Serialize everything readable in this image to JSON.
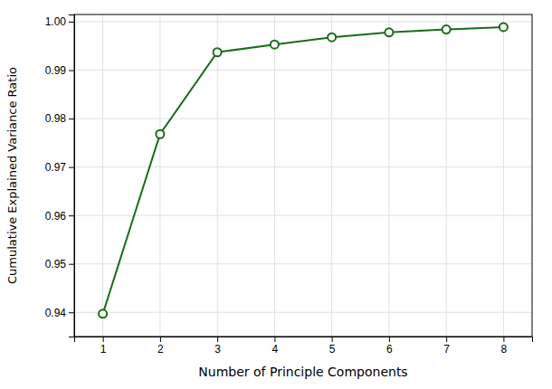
{
  "chart_data": {
    "type": "line",
    "x": [
      1,
      2,
      3,
      4,
      5,
      6,
      7,
      8
    ],
    "values": [
      0.9397,
      0.9768,
      0.9937,
      0.9953,
      0.9968,
      0.9978,
      0.9984,
      0.9989
    ],
    "color": "#1a6b1a",
    "marker": "circle",
    "xlabel": "Number of Principle Components",
    "ylabel": "Cumulative Explained Variance Ratio",
    "xlim": [
      0.5,
      8.5
    ],
    "ylim": [
      0.935,
      1.0015
    ],
    "xticks": [
      1,
      2,
      3,
      4,
      5,
      6,
      7,
      8
    ],
    "yticks": [
      0.94,
      0.95,
      0.96,
      0.97,
      0.98,
      0.99,
      {
        "value": 1,
        "label": "1.00"
      }
    ],
    "grid": true
  }
}
